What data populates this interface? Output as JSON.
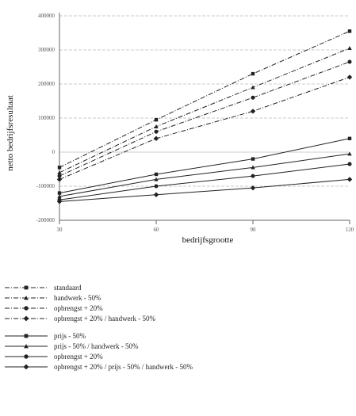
{
  "chart_data": {
    "type": "line",
    "title": "",
    "xlabel": "bedrijfsgrootte",
    "ylabel": "netto bedrijfsresultaat",
    "x": [
      30,
      60,
      90,
      120
    ],
    "x_tick_labels": [
      "30",
      "60",
      "90",
      "120"
    ],
    "xlim": [
      30,
      120
    ],
    "ylim": [
      -200000,
      400000
    ],
    "y_ticks": [
      -200000,
      -100000,
      0,
      100000,
      200000,
      300000,
      400000
    ],
    "y_tick_labels": [
      "-200000",
      "-100000",
      "0",
      "100000",
      "200000",
      "300000",
      "400000"
    ],
    "grid": "horizontal dashed",
    "legend_placement": "below",
    "series": [
      {
        "name": "standaard",
        "values": [
          -45000,
          95000,
          230000,
          355000
        ],
        "style": "dashed",
        "marker": "square"
      },
      {
        "name": "handwerk - 50%",
        "values": [
          -60000,
          75000,
          190000,
          305000
        ],
        "style": "dashed",
        "marker": "triangle"
      },
      {
        "name": "opbrengst + 20%",
        "values": [
          -70000,
          60000,
          160000,
          265000
        ],
        "style": "dashed",
        "marker": "circle"
      },
      {
        "name": "opbrengst + 20% / handwerk - 50%",
        "values": [
          -80000,
          40000,
          120000,
          220000
        ],
        "style": "dashed",
        "marker": "diamond"
      },
      {
        "name": "prijs - 50%",
        "values": [
          -120000,
          -65000,
          -20000,
          40000
        ],
        "style": "solid",
        "marker": "square"
      },
      {
        "name": "prijs - 50% / handwerk - 50%",
        "values": [
          -130000,
          -80000,
          -45000,
          -5000
        ],
        "style": "solid",
        "marker": "triangle"
      },
      {
        "name": "opbrengst + 20%",
        "values": [
          -140000,
          -100000,
          -70000,
          -35000
        ],
        "style": "solid",
        "marker": "circle"
      },
      {
        "name": "opbrengst + 20% / prijs - 50% / handwerk - 50%",
        "values": [
          -145000,
          -125000,
          -105000,
          -80000
        ],
        "style": "solid",
        "marker": "diamond"
      }
    ],
    "colors": {
      "line": "#222222",
      "grid": "#bbbbbb",
      "axis": "#666666"
    }
  }
}
